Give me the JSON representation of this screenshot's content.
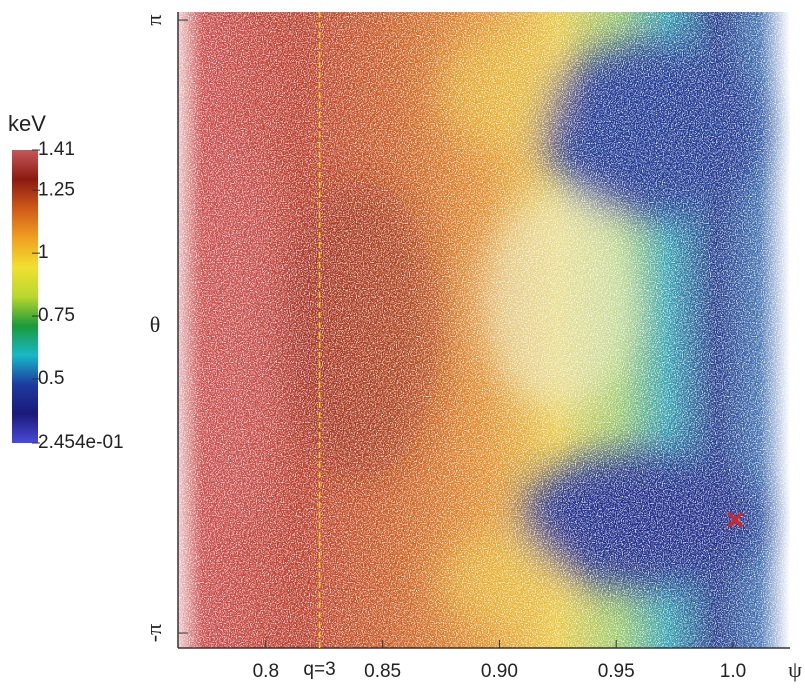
{
  "chart_data": {
    "type": "scatter",
    "colorbar_label": "keV",
    "colorbar_lim": [
      0.2454,
      1.41
    ],
    "colorbar_ticks": [
      1.41,
      1.25,
      1,
      0.75,
      0.5,
      {
        "value": 0.2454,
        "label": "2.454e-01"
      }
    ],
    "colormap": [
      "#4a4ad8",
      "#1a1a7a",
      "#1e3aa0",
      "#18b8c8",
      "#1a9a3a",
      "#b8d830",
      "#f0e030",
      "#f0a020",
      "#d05a18",
      "#8a1a10",
      "#c85858"
    ],
    "xlabel": "ψ",
    "ylabel": "θ",
    "xlim": [
      0.7624,
      1.0244
    ],
    "ylim": [
      -3.295,
      3.224
    ],
    "xticks": [
      0.8,
      0.85,
      {
        "value": 0.9,
        "label": "0.90"
      },
      0.95,
      {
        "value": 1,
        "label": "1.0"
      }
    ],
    "yticks": [
      {
        "value": -3.14159,
        "label": "-π"
      },
      {
        "value": 3.14159,
        "label": "π"
      }
    ],
    "annotations": [
      {
        "text": "q=3",
        "x": 0.823
      }
    ],
    "points": [
      {
        "x": 1.001,
        "y": -1.98,
        "color": "#e02020"
      }
    ]
  }
}
